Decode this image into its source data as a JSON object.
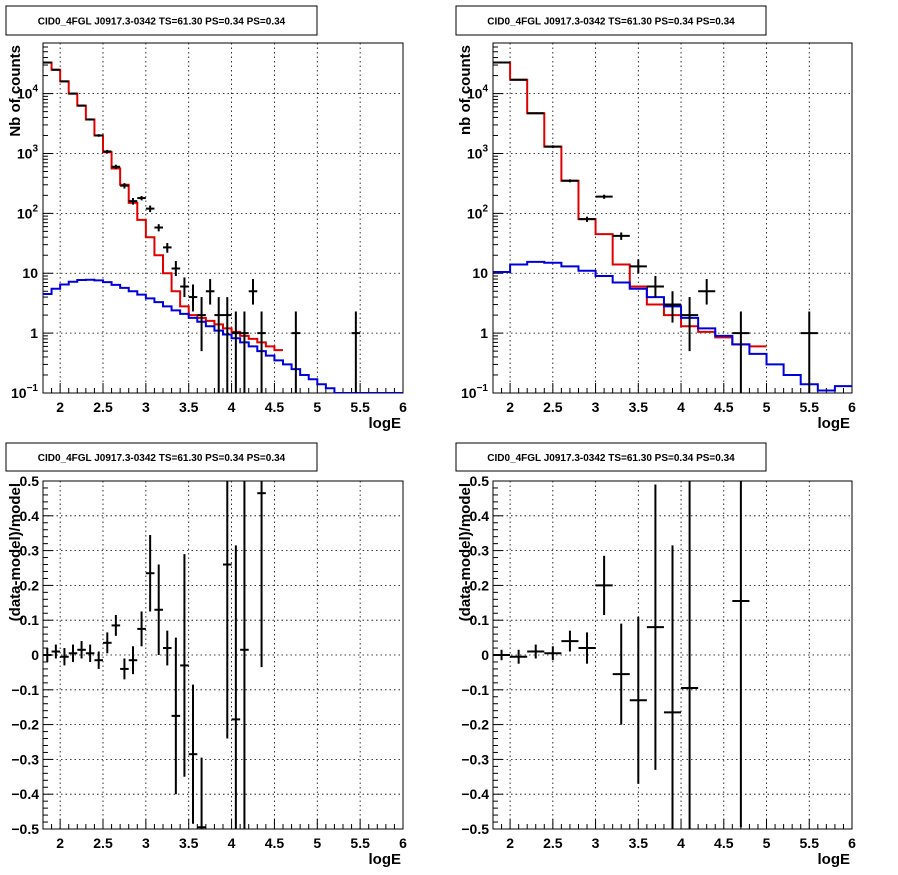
{
  "chart_data": [
    {
      "type": "line",
      "panel": "top-left",
      "title": "CID0_4FGL J0917.3-0342 TS=61.30 PS=0.34 PS=0.34",
      "xlabel": "logE",
      "ylabel": "Nb of counts",
      "xlim": [
        1.8,
        6.0
      ],
      "ylim": [
        0.1,
        70000
      ],
      "yscale": "log",
      "grid": true,
      "x_ticks": [
        "2",
        "2.5",
        "3",
        "3.5",
        "4",
        "4.5",
        "5",
        "5.5",
        "6"
      ],
      "y_ticks": [
        {
          "value": 0.1,
          "base": "10",
          "exp": "−1"
        },
        {
          "value": 1,
          "label": "1"
        },
        {
          "value": 10,
          "label": "10"
        },
        {
          "value": 100,
          "base": "10",
          "exp": "2"
        },
        {
          "value": 1000,
          "base": "10",
          "exp": "3"
        },
        {
          "value": 10000,
          "base": "10",
          "exp": "4"
        }
      ],
      "bin_edges": [
        1.8,
        1.9,
        2.0,
        2.1,
        2.2,
        2.3,
        2.4,
        2.5,
        2.6,
        2.7,
        2.8,
        2.9,
        3.0,
        3.1,
        3.2,
        3.3,
        3.4,
        3.5,
        3.6,
        3.7,
        3.8,
        3.9,
        4.0,
        4.1,
        4.2,
        4.3,
        4.4,
        4.5,
        4.6,
        4.7,
        4.8,
        4.9,
        5.0,
        5.1,
        5.2,
        5.3,
        5.4,
        5.5,
        5.6,
        5.7,
        5.8,
        5.9,
        6.0
      ],
      "series": [
        {
          "kind": "step",
          "color": "#e00000",
          "values": [
            33000,
            25000,
            16000,
            10000,
            6300,
            3700,
            2000,
            1050,
            560,
            300,
            150,
            78,
            40,
            20,
            10,
            5,
            2.8,
            2.0,
            1.8,
            1.6,
            1.4,
            1.2,
            1.05,
            0.9,
            0.8,
            0.7,
            0.6,
            0.52
          ]
        },
        {
          "kind": "step",
          "color": "#0000dd",
          "values": [
            4.5,
            5.5,
            6.5,
            7.2,
            7.7,
            7.8,
            7.6,
            7.1,
            6.4,
            5.7,
            5.0,
            4.4,
            3.8,
            3.3,
            2.8,
            2.4,
            2.1,
            1.8,
            1.55,
            1.3,
            1.1,
            0.95,
            0.82,
            0.7,
            0.6,
            0.5,
            0.42,
            0.35,
            0.3,
            0.25,
            0.2,
            0.17,
            0.14,
            0.12,
            0.1,
            0.1,
            0.1,
            0.1,
            0.1,
            0.1,
            0.1,
            0.1
          ]
        },
        {
          "kind": "points",
          "color": "#000000",
          "points": [
            {
              "x": 1.85,
              "y": 33000,
              "lo": 32500,
              "hi": 33500
            },
            {
              "x": 1.95,
              "y": 25000,
              "lo": 24500,
              "hi": 25500
            },
            {
              "x": 2.05,
              "y": 16000,
              "lo": 15600,
              "hi": 16400
            },
            {
              "x": 2.15,
              "y": 10000,
              "lo": 9700,
              "hi": 10300
            },
            {
              "x": 2.25,
              "y": 6300,
              "lo": 6100,
              "hi": 6500
            },
            {
              "x": 2.35,
              "y": 3700,
              "lo": 3550,
              "hi": 3850
            },
            {
              "x": 2.45,
              "y": 2000,
              "lo": 1900,
              "hi": 2100
            },
            {
              "x": 2.55,
              "y": 1080,
              "lo": 1010,
              "hi": 1150
            },
            {
              "x": 2.65,
              "y": 600,
              "lo": 550,
              "hi": 650
            },
            {
              "x": 2.75,
              "y": 290,
              "lo": 260,
              "hi": 320
            },
            {
              "x": 2.85,
              "y": 160,
              "lo": 140,
              "hi": 180
            },
            {
              "x": 2.95,
              "y": 180,
              "lo": 165,
              "hi": 195
            },
            {
              "x": 3.05,
              "y": 120,
              "lo": 105,
              "hi": 135
            },
            {
              "x": 3.15,
              "y": 58,
              "lo": 50,
              "hi": 66
            },
            {
              "x": 3.25,
              "y": 27,
              "lo": 22,
              "hi": 32
            },
            {
              "x": 3.35,
              "y": 12,
              "lo": 9,
              "hi": 16
            },
            {
              "x": 3.45,
              "y": 6,
              "lo": 4,
              "hi": 8.5
            },
            {
              "x": 3.55,
              "y": 4,
              "lo": 2.3,
              "hi": 6.5
            },
            {
              "x": 3.65,
              "y": 2,
              "lo": 0.5,
              "hi": 4
            },
            {
              "x": 3.75,
              "y": 5,
              "lo": 3,
              "hi": 8
            },
            {
              "x": 3.85,
              "y": 2,
              "lo": 0.1,
              "hi": 4
            },
            {
              "x": 3.95,
              "y": 2,
              "lo": 0.1,
              "hi": 4
            },
            {
              "x": 4.05,
              "y": 1,
              "lo": 0.1,
              "hi": 2.3
            },
            {
              "x": 4.15,
              "y": 1,
              "lo": 0.1,
              "hi": 2.3
            },
            {
              "x": 4.25,
              "y": 5,
              "lo": 3,
              "hi": 8
            },
            {
              "x": 4.35,
              "y": 1,
              "lo": 0.1,
              "hi": 2.3
            },
            {
              "x": 4.75,
              "y": 1,
              "lo": 0.1,
              "hi": 2.3
            },
            {
              "x": 5.45,
              "y": 1,
              "lo": 0.1,
              "hi": 2.3
            }
          ]
        }
      ]
    },
    {
      "type": "line",
      "panel": "top-right",
      "title": "CID0_4FGL J0917.3-0342 TS=61.30 PS=0.34 PS=0.34",
      "xlabel": "logE",
      "ylabel": "nb of counts",
      "xlim": [
        1.8,
        6.0
      ],
      "ylim": [
        0.1,
        70000
      ],
      "yscale": "log",
      "grid": true,
      "x_ticks": [
        "2",
        "2.5",
        "3",
        "3.5",
        "4",
        "4.5",
        "5",
        "5.5",
        "6"
      ],
      "y_ticks": [
        {
          "value": 0.1,
          "base": "10",
          "exp": "−1"
        },
        {
          "value": 1,
          "label": "1"
        },
        {
          "value": 10,
          "label": "10"
        },
        {
          "value": 100,
          "base": "10",
          "exp": "2"
        },
        {
          "value": 1000,
          "base": "10",
          "exp": "3"
        },
        {
          "value": 10000,
          "base": "10",
          "exp": "4"
        }
      ],
      "bin_edges": [
        1.8,
        2.0,
        2.2,
        2.4,
        2.6,
        2.8,
        3.0,
        3.2,
        3.4,
        3.6,
        3.8,
        4.0,
        4.2,
        4.4,
        4.6,
        4.8,
        5.0,
        5.2,
        5.4,
        5.6,
        5.8,
        6.0
      ],
      "series": [
        {
          "kind": "step",
          "color": "#e00000",
          "values": [
            33000,
            17000,
            4700,
            1300,
            350,
            80,
            45,
            14,
            6,
            3,
            2.0,
            1.3,
            1.05,
            0.85,
            0.65,
            0.6
          ]
        },
        {
          "kind": "step",
          "color": "#0000dd",
          "values": [
            10.5,
            14,
            15.5,
            15,
            13,
            11,
            9,
            7,
            5.5,
            4,
            2.8,
            1.8,
            1.2,
            0.9,
            0.65,
            0.45,
            0.3,
            0.2,
            0.14,
            0.11,
            0.13
          ]
        },
        {
          "kind": "points",
          "color": "#000000",
          "points": [
            {
              "x": 1.9,
              "y": 33000,
              "lo": 32600,
              "hi": 33400
            },
            {
              "x": 2.1,
              "y": 17000,
              "lo": 16700,
              "hi": 17300
            },
            {
              "x": 2.3,
              "y": 4700,
              "lo": 4550,
              "hi": 4850
            },
            {
              "x": 2.5,
              "y": 1300,
              "lo": 1230,
              "hi": 1370
            },
            {
              "x": 2.7,
              "y": 350,
              "lo": 330,
              "hi": 370
            },
            {
              "x": 2.9,
              "y": 80,
              "lo": 72,
              "hi": 88
            },
            {
              "x": 3.1,
              "y": 190,
              "lo": 175,
              "hi": 205
            },
            {
              "x": 3.3,
              "y": 42,
              "lo": 36,
              "hi": 48
            },
            {
              "x": 3.5,
              "y": 13,
              "lo": 10,
              "hi": 17
            },
            {
              "x": 3.7,
              "y": 6,
              "lo": 4,
              "hi": 9
            },
            {
              "x": 3.9,
              "y": 3,
              "lo": 1.5,
              "hi": 5
            },
            {
              "x": 4.1,
              "y": 2,
              "lo": 0.5,
              "hi": 4
            },
            {
              "x": 4.3,
              "y": 5,
              "lo": 3,
              "hi": 8
            },
            {
              "x": 4.7,
              "y": 1,
              "lo": 0.1,
              "hi": 2.3
            },
            {
              "x": 5.5,
              "y": 1,
              "lo": 0.1,
              "hi": 2.3
            }
          ]
        }
      ]
    },
    {
      "type": "scatter",
      "panel": "bottom-left",
      "title": "CID0_4FGL J0917.3-0342 TS=61.30 PS=0.34 PS=0.34",
      "xlabel": "logE",
      "ylabel": "(data-model)/model",
      "xlim": [
        1.8,
        6.0
      ],
      "ylim": [
        -0.5,
        0.5
      ],
      "grid": true,
      "x_ticks": [
        "2",
        "2.5",
        "3",
        "3.5",
        "4",
        "4.5",
        "5",
        "5.5",
        "6"
      ],
      "y_ticks": [
        "−0.5",
        "−0.4",
        "−0.3",
        "−0.2",
        "−0.1",
        "0",
        "0.1",
        "0.2",
        "0.3",
        "0.4",
        "0.5"
      ],
      "bin_half_width": 0.05,
      "points": [
        {
          "x": 1.85,
          "y": 0.0,
          "err": 0.02
        },
        {
          "x": 1.95,
          "y": 0.01,
          "err": 0.02
        },
        {
          "x": 2.05,
          "y": -0.005,
          "err": 0.025
        },
        {
          "x": 2.15,
          "y": 0.005,
          "err": 0.025
        },
        {
          "x": 2.25,
          "y": 0.015,
          "err": 0.025
        },
        {
          "x": 2.35,
          "y": 0.005,
          "err": 0.025
        },
        {
          "x": 2.45,
          "y": -0.015,
          "err": 0.025
        },
        {
          "x": 2.55,
          "y": 0.035,
          "err": 0.03
        },
        {
          "x": 2.65,
          "y": 0.085,
          "err": 0.03
        },
        {
          "x": 2.75,
          "y": -0.04,
          "err": 0.03
        },
        {
          "x": 2.85,
          "y": -0.015,
          "err": 0.04
        },
        {
          "x": 2.95,
          "y": 0.075,
          "err": 0.05
        },
        {
          "x": 3.05,
          "y": 0.235,
          "err": 0.11
        },
        {
          "x": 3.15,
          "y": 0.13,
          "err": 0.13
        },
        {
          "x": 3.25,
          "y": 0.02,
          "err": 0.05
        },
        {
          "x": 3.35,
          "y": -0.175,
          "err": 0.225
        },
        {
          "x": 3.45,
          "y": -0.03,
          "err": 0.32
        },
        {
          "x": 3.55,
          "y": -0.285,
          "err": 0.2
        },
        {
          "x": 3.65,
          "y": -0.495,
          "err": 0.2
        },
        {
          "x": 3.95,
          "y": 0.26,
          "err": 0.5
        },
        {
          "x": 4.05,
          "y": -0.185,
          "err": 0.5
        },
        {
          "x": 4.15,
          "y": 0.015,
          "err": 0.55
        },
        {
          "x": 4.35,
          "y": 0.465,
          "err": 0.5
        }
      ]
    },
    {
      "type": "scatter",
      "panel": "bottom-right",
      "title": "CID0_4FGL J0917.3-0342 TS=61.30 PS=0.34 PS=0.34",
      "xlabel": "logE",
      "ylabel": "(data-model)/model",
      "xlim": [
        1.8,
        6.0
      ],
      "ylim": [
        -0.5,
        0.5
      ],
      "grid": true,
      "x_ticks": [
        "2",
        "2.5",
        "3",
        "3.5",
        "4",
        "4.5",
        "5",
        "5.5",
        "6"
      ],
      "y_ticks": [
        "−0.5",
        "−0.4",
        "−0.3",
        "−0.2",
        "−0.1",
        "0",
        "0.1",
        "0.2",
        "0.3",
        "0.4",
        "0.5"
      ],
      "bin_half_width": 0.1,
      "points": [
        {
          "x": 1.9,
          "y": 0.0,
          "err": 0.015
        },
        {
          "x": 2.1,
          "y": -0.005,
          "err": 0.02
        },
        {
          "x": 2.3,
          "y": 0.01,
          "err": 0.02
        },
        {
          "x": 2.5,
          "y": 0.005,
          "err": 0.02
        },
        {
          "x": 2.7,
          "y": 0.04,
          "err": 0.03
        },
        {
          "x": 2.9,
          "y": 0.02,
          "err": 0.045
        },
        {
          "x": 3.1,
          "y": 0.2,
          "err": 0.085
        },
        {
          "x": 3.3,
          "y": -0.055,
          "err": 0.145
        },
        {
          "x": 3.5,
          "y": -0.13,
          "err": 0.24
        },
        {
          "x": 3.7,
          "y": 0.08,
          "err": 0.41
        },
        {
          "x": 3.9,
          "y": -0.165,
          "err": 0.48
        },
        {
          "x": 4.1,
          "y": -0.095,
          "err": 0.6
        },
        {
          "x": 4.7,
          "y": 0.155,
          "err": 0.65
        }
      ]
    }
  ]
}
